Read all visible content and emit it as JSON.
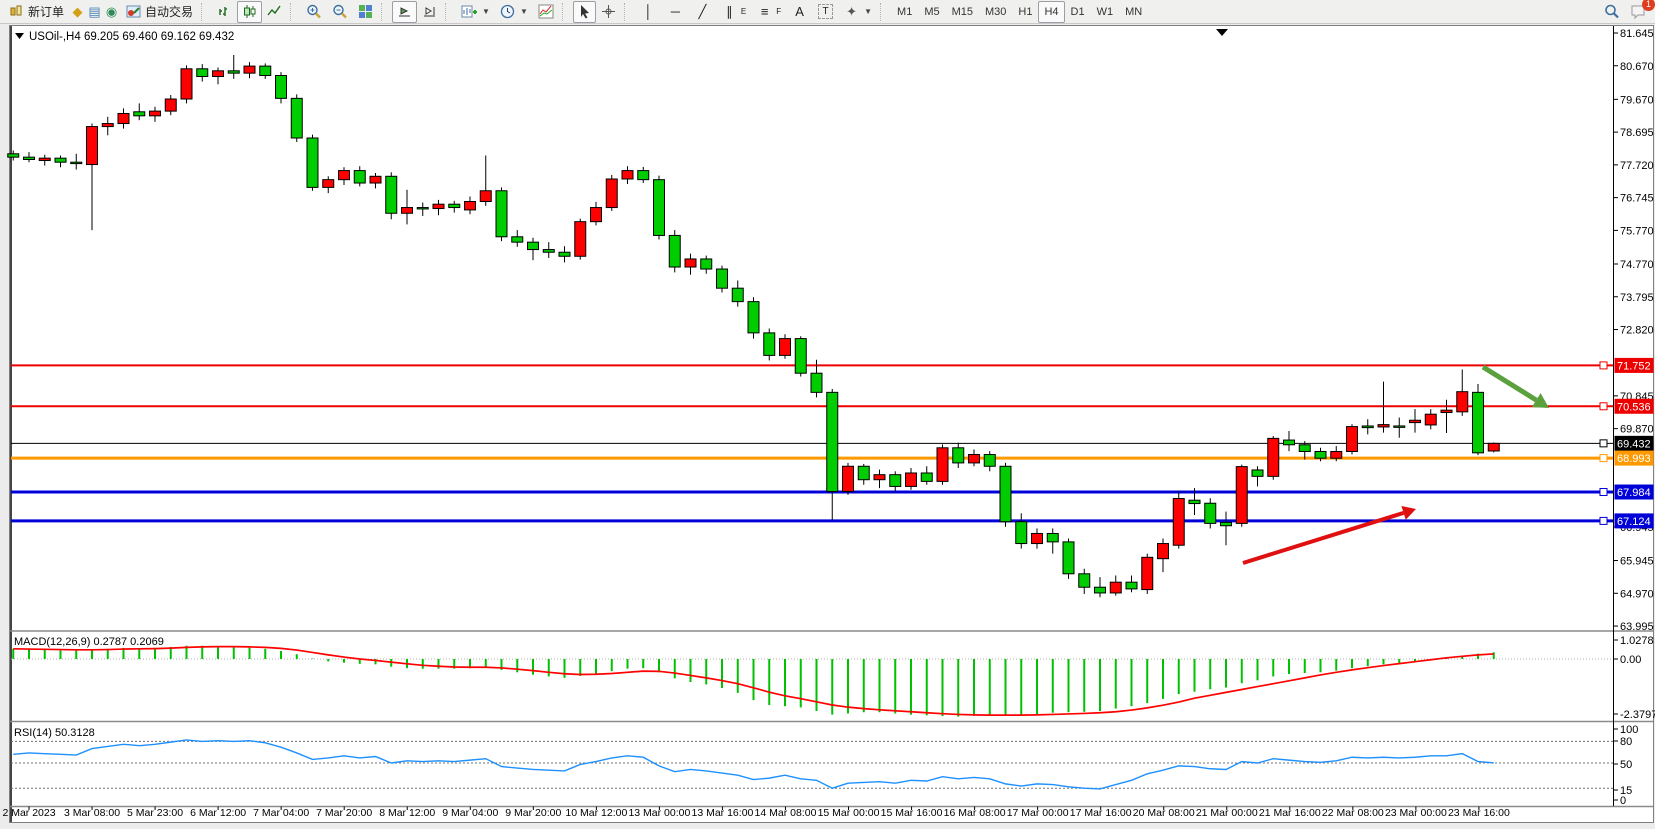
{
  "toolbar": {
    "new_order": "新订单",
    "auto_trading": "自动交易",
    "timeframes": [
      "M1",
      "M5",
      "M15",
      "M30",
      "H1",
      "H4",
      "D1",
      "W1",
      "MN"
    ],
    "active_timeframe": "H4",
    "notification_count": "1",
    "letter_tools": {
      "channel": "E",
      "fibonacci": "F",
      "text": "A",
      "label": "T"
    }
  },
  "chart": {
    "symbol_title": "USOil-,H4",
    "ohlc_title": "69.205 69.460 69.162 69.432",
    "price_ticks": [
      "81.645",
      "80.670",
      "79.670",
      "78.695",
      "77.720",
      "76.745",
      "75.770",
      "74.770",
      "73.795",
      "72.820",
      "70.845",
      "69.870",
      "66.945",
      "65.945",
      "64.970",
      "63.995"
    ],
    "hlines": [
      {
        "price": 71.752,
        "label": "71.752",
        "color": "#EE0000",
        "width": 2
      },
      {
        "price": 70.536,
        "label": "70.536",
        "color": "#EE0000",
        "width": 2
      },
      {
        "price": 69.432,
        "label": "69.432",
        "color": "#000000",
        "width": 1
      },
      {
        "price": 68.993,
        "label": "68.993",
        "color": "#FF9900",
        "width": 3
      },
      {
        "price": 67.984,
        "label": "67.984",
        "color": "#0000D8",
        "width": 3
      },
      {
        "price": 67.124,
        "label": "67.124",
        "color": "#0000D8",
        "width": 3
      }
    ],
    "time_labels": [
      "2 Mar 2023",
      "3 Mar 08:00",
      "5 Mar 23:00",
      "6 Mar 12:00",
      "7 Mar 04:00",
      "7 Mar 20:00",
      "8 Mar 12:00",
      "9 Mar 04:00",
      "9 Mar 20:00",
      "10 Mar 12:00",
      "13 Mar 00:00",
      "13 Mar 16:00",
      "14 Mar 08:00",
      "15 Mar 00:00",
      "15 Mar 16:00",
      "16 Mar 08:00",
      "17 Mar 00:00",
      "17 Mar 16:00",
      "20 Mar 08:00",
      "21 Mar 00:00",
      "21 Mar 16:00",
      "22 Mar 08:00",
      "23 Mar 00:00",
      "23 Mar 16:00"
    ],
    "arrows": [
      {
        "name": "bullish-trend-arrow",
        "color": "#E01010",
        "from": [
          1243,
          563
        ],
        "to": [
          1416,
          509
        ],
        "width": 4,
        "head": 13
      },
      {
        "name": "bearish-trend-arrow",
        "color": "#5AA03C",
        "from": [
          1483,
          367
        ],
        "to": [
          1549,
          408
        ],
        "width": 5,
        "head": 15
      }
    ],
    "colors": {
      "bull": "#FF0000",
      "bear": "#00CD00",
      "wick": "#000000",
      "outline": "#000000"
    }
  },
  "chart_data": {
    "type": "candlestick",
    "title": "USOil-,H4",
    "bars": [
      [
        78.05,
        78.15,
        77.85,
        77.95
      ],
      [
        77.95,
        78.1,
        77.8,
        77.88
      ],
      [
        77.85,
        78.02,
        77.7,
        77.92
      ],
      [
        77.92,
        78.0,
        77.65,
        77.8
      ],
      [
        77.8,
        78.05,
        77.58,
        77.78
      ],
      [
        77.73,
        78.95,
        75.78,
        78.86
      ],
      [
        78.86,
        79.15,
        78.6,
        78.95
      ],
      [
        78.95,
        79.4,
        78.8,
        79.25
      ],
      [
        79.3,
        79.55,
        79.05,
        79.18
      ],
      [
        79.18,
        79.45,
        79.0,
        79.32
      ],
      [
        79.32,
        79.8,
        79.2,
        79.68
      ],
      [
        79.68,
        80.68,
        79.55,
        80.58
      ],
      [
        80.58,
        80.72,
        80.2,
        80.35
      ],
      [
        80.35,
        80.62,
        80.12,
        80.52
      ],
      [
        80.52,
        80.99,
        80.28,
        80.45
      ],
      [
        80.45,
        80.78,
        80.3,
        80.66
      ],
      [
        80.66,
        80.74,
        80.28,
        80.38
      ],
      [
        80.38,
        80.48,
        79.55,
        79.7
      ],
      [
        79.7,
        79.82,
        78.4,
        78.52
      ],
      [
        78.52,
        78.62,
        76.95,
        77.05
      ],
      [
        77.05,
        77.38,
        76.88,
        77.28
      ],
      [
        77.28,
        77.65,
        77.12,
        77.55
      ],
      [
        77.55,
        77.68,
        77.08,
        77.18
      ],
      [
        77.18,
        77.48,
        77.02,
        77.38
      ],
      [
        77.38,
        77.5,
        76.1,
        76.28
      ],
      [
        76.28,
        76.98,
        75.95,
        76.45
      ],
      [
        76.45,
        76.6,
        76.2,
        76.42
      ],
      [
        76.42,
        76.68,
        76.22,
        76.55
      ],
      [
        76.55,
        76.65,
        76.3,
        76.45
      ],
      [
        76.38,
        76.78,
        76.25,
        76.63
      ],
      [
        76.63,
        78.0,
        76.5,
        76.95
      ],
      [
        76.95,
        77.05,
        75.45,
        75.58
      ],
      [
        75.58,
        75.78,
        75.28,
        75.42
      ],
      [
        75.42,
        75.55,
        74.88,
        75.2
      ],
      [
        75.2,
        75.42,
        74.95,
        75.12
      ],
      [
        75.12,
        75.3,
        74.82,
        75.0
      ],
      [
        75.0,
        76.12,
        74.9,
        76.03
      ],
      [
        76.03,
        76.62,
        75.92,
        76.45
      ],
      [
        76.45,
        77.42,
        76.35,
        77.3
      ],
      [
        77.3,
        77.68,
        77.15,
        77.55
      ],
      [
        77.55,
        77.66,
        77.18,
        77.28
      ],
      [
        77.28,
        77.4,
        75.5,
        75.62
      ],
      [
        75.62,
        75.78,
        74.52,
        74.68
      ],
      [
        74.68,
        75.08,
        74.45,
        74.92
      ],
      [
        74.92,
        75.02,
        74.48,
        74.62
      ],
      [
        74.62,
        74.72,
        73.92,
        74.05
      ],
      [
        74.05,
        74.28,
        73.5,
        73.65
      ],
      [
        73.65,
        73.78,
        72.55,
        72.72
      ],
      [
        72.72,
        72.85,
        71.9,
        72.05
      ],
      [
        72.05,
        72.68,
        71.95,
        72.55
      ],
      [
        72.55,
        72.62,
        71.42,
        71.52
      ],
      [
        71.52,
        71.92,
        70.8,
        70.95
      ],
      [
        70.95,
        71.05,
        67.15,
        68.0
      ],
      [
        68.0,
        68.85,
        67.9,
        68.75
      ],
      [
        68.75,
        68.82,
        68.2,
        68.35
      ],
      [
        68.35,
        68.65,
        68.1,
        68.5
      ],
      [
        68.5,
        68.6,
        68.0,
        68.15
      ],
      [
        68.15,
        68.7,
        68.05,
        68.55
      ],
      [
        68.55,
        68.75,
        68.2,
        68.3
      ],
      [
        68.3,
        69.4,
        68.2,
        69.3
      ],
      [
        69.3,
        69.45,
        68.7,
        68.85
      ],
      [
        68.85,
        69.25,
        68.75,
        69.1
      ],
      [
        69.1,
        69.2,
        68.6,
        68.75
      ],
      [
        68.75,
        68.85,
        66.95,
        67.1
      ],
      [
        67.1,
        67.35,
        66.3,
        66.45
      ],
      [
        66.45,
        66.9,
        66.3,
        66.75
      ],
      [
        66.75,
        66.9,
        66.15,
        66.5
      ],
      [
        66.5,
        66.6,
        65.4,
        65.55
      ],
      [
        65.55,
        65.7,
        64.95,
        65.15
      ],
      [
        65.15,
        65.45,
        64.85,
        64.98
      ],
      [
        64.98,
        65.5,
        64.9,
        65.3
      ],
      [
        65.3,
        65.5,
        65.0,
        65.1
      ],
      [
        65.08,
        66.15,
        64.95,
        66.04
      ],
      [
        66.0,
        66.6,
        65.6,
        66.45
      ],
      [
        66.4,
        68.0,
        66.3,
        67.79
      ],
      [
        67.74,
        68.1,
        67.3,
        67.64
      ],
      [
        67.65,
        67.8,
        66.9,
        67.05
      ],
      [
        67.08,
        67.4,
        66.4,
        66.98
      ],
      [
        67.05,
        68.8,
        66.95,
        68.74
      ],
      [
        68.64,
        68.75,
        68.15,
        68.45
      ],
      [
        68.45,
        69.65,
        68.35,
        69.58
      ],
      [
        69.53,
        69.8,
        69.2,
        69.39
      ],
      [
        69.39,
        69.5,
        68.95,
        69.19
      ],
      [
        69.19,
        69.3,
        68.9,
        68.99
      ],
      [
        68.99,
        69.35,
        68.9,
        69.19
      ],
      [
        69.19,
        70.0,
        69.1,
        69.93
      ],
      [
        69.95,
        70.15,
        69.7,
        69.9
      ],
      [
        69.92,
        71.27,
        69.75,
        69.99
      ],
      [
        69.95,
        70.2,
        69.6,
        69.93
      ],
      [
        70.05,
        70.45,
        69.75,
        70.12
      ],
      [
        69.98,
        70.45,
        69.85,
        70.3
      ],
      [
        70.35,
        70.73,
        69.74,
        70.42
      ],
      [
        70.37,
        71.63,
        70.25,
        70.97
      ],
      [
        70.95,
        71.2,
        69.08,
        69.15
      ],
      [
        69.205,
        69.46,
        69.162,
        69.432
      ]
    ],
    "macd": {
      "label": "MACD(12,26,9)",
      "main_value": "0.2787",
      "signal_value": "0.2069",
      "ticks": [
        "1.0278",
        "0.00",
        "-2.3797"
      ],
      "tick_values": [
        1.0278,
        0,
        -2.3797
      ],
      "colors": {
        "histogram": "#00C000",
        "signal": "#FF0000"
      },
      "histogram": [
        0.42,
        0.4,
        0.38,
        0.36,
        0.35,
        0.38,
        0.42,
        0.46,
        0.45,
        0.46,
        0.5,
        0.55,
        0.55,
        0.53,
        0.5,
        0.47,
        0.42,
        0.33,
        0.2,
        0.02,
        -0.1,
        -0.15,
        -0.2,
        -0.22,
        -0.32,
        -0.38,
        -0.4,
        -0.4,
        -0.4,
        -0.38,
        -0.35,
        -0.45,
        -0.55,
        -0.65,
        -0.72,
        -0.78,
        -0.7,
        -0.62,
        -0.5,
        -0.4,
        -0.38,
        -0.55,
        -0.8,
        -0.95,
        -1.05,
        -1.2,
        -1.4,
        -1.7,
        -1.9,
        -1.95,
        -2.0,
        -2.15,
        -2.3,
        -2.25,
        -2.2,
        -2.2,
        -2.25,
        -2.3,
        -2.33,
        -2.36,
        -2.38,
        -2.35,
        -2.3,
        -2.3,
        -2.32,
        -2.28,
        -2.22,
        -2.2,
        -2.18,
        -2.15,
        -2.05,
        -1.95,
        -1.82,
        -1.65,
        -1.45,
        -1.35,
        -1.25,
        -1.18,
        -1.0,
        -0.88,
        -0.72,
        -0.62,
        -0.58,
        -0.55,
        -0.48,
        -0.38,
        -0.3,
        -0.22,
        -0.18,
        -0.12,
        -0.05,
        0.02,
        0.12,
        0.22,
        0.2787
      ],
      "signal": [
        0.42,
        0.41,
        0.4,
        0.39,
        0.38,
        0.38,
        0.39,
        0.41,
        0.42,
        0.43,
        0.45,
        0.48,
        0.5,
        0.51,
        0.51,
        0.5,
        0.48,
        0.44,
        0.37,
        0.27,
        0.17,
        0.08,
        0.0,
        -0.06,
        -0.13,
        -0.2,
        -0.26,
        -0.3,
        -0.33,
        -0.34,
        -0.34,
        -0.37,
        -0.42,
        -0.48,
        -0.55,
        -0.61,
        -0.64,
        -0.63,
        -0.6,
        -0.55,
        -0.5,
        -0.51,
        -0.58,
        -0.68,
        -0.78,
        -0.89,
        -1.02,
        -1.19,
        -1.37,
        -1.52,
        -1.64,
        -1.77,
        -1.9,
        -1.99,
        -2.05,
        -2.1,
        -2.14,
        -2.18,
        -2.22,
        -2.26,
        -2.29,
        -2.31,
        -2.32,
        -2.32,
        -2.32,
        -2.31,
        -2.29,
        -2.27,
        -2.25,
        -2.22,
        -2.18,
        -2.11,
        -2.02,
        -1.91,
        -1.78,
        -1.62,
        -1.5,
        -1.38,
        -1.26,
        -1.14,
        -1.02,
        -0.9,
        -0.78,
        -0.66,
        -0.55,
        -0.45,
        -0.36,
        -0.27,
        -0.19,
        -0.11,
        -0.03,
        0.05,
        0.11,
        0.17,
        0.21
      ]
    },
    "rsi": {
      "label": "RSI(14)",
      "value": "50.3128",
      "ticks": [
        "100",
        "80",
        "50",
        "15",
        "0"
      ],
      "levels": [
        80,
        50,
        15
      ],
      "color": "#1E90FF",
      "series": [
        62,
        64,
        63,
        62,
        61,
        70,
        73,
        76,
        74,
        76,
        79,
        82,
        80,
        81,
        80,
        81,
        78,
        72,
        64,
        55,
        57,
        60,
        57,
        59,
        50,
        53,
        52,
        53,
        52,
        54,
        56,
        45,
        43,
        41,
        40,
        39,
        48,
        52,
        57,
        60,
        58,
        46,
        38,
        41,
        39,
        36,
        33,
        27,
        29,
        33,
        28,
        26,
        15,
        22,
        23,
        24,
        22,
        26,
        25,
        31,
        28,
        30,
        28,
        21,
        18,
        21,
        20,
        17,
        15,
        14,
        20,
        26,
        35,
        40,
        46,
        45,
        42,
        41,
        52,
        50,
        56,
        54,
        52,
        51,
        53,
        58,
        57,
        58,
        57,
        58,
        60,
        60,
        63,
        52,
        50.31
      ]
    }
  }
}
